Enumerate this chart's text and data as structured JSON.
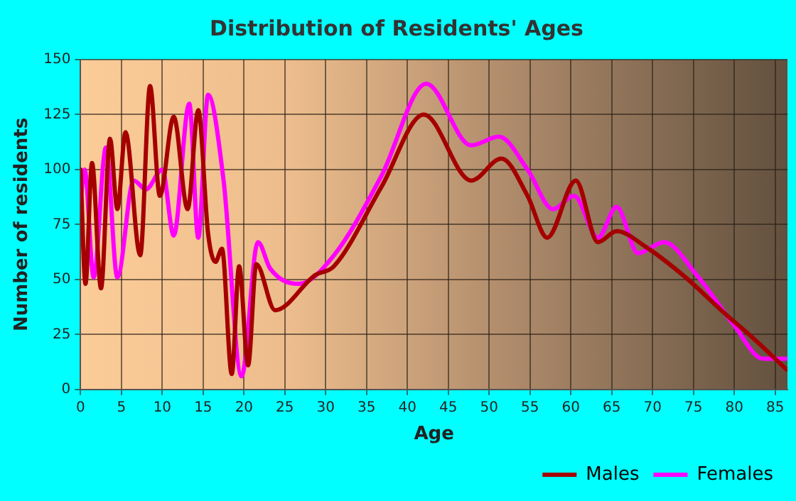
{
  "chart_data": {
    "type": "line",
    "title": "Distribution of Residents' Ages",
    "xlabel": "Age",
    "ylabel": "Number of residents",
    "xlim": [
      0,
      86.5
    ],
    "xticks": [
      0,
      5,
      10,
      15,
      20,
      25,
      30,
      35,
      40,
      45,
      50,
      55,
      60,
      65,
      70,
      75,
      80,
      85
    ],
    "ylim": [
      0,
      150
    ],
    "yticks": [
      0,
      25,
      50,
      75,
      100,
      125,
      150
    ],
    "grid": true,
    "legend": "bottom right",
    "marker": "none",
    "line_style": "solid",
    "series": [
      {
        "name": "Males",
        "color": "#a50000",
        "x": [
          0,
          0.6,
          1.4,
          2.5,
          3.6,
          4.5,
          5.5,
          7.3,
          8.5,
          9.7,
          11.4,
          13.1,
          14.4,
          15.6,
          16.5,
          17.3,
          18.5,
          19.4,
          20.5,
          21.5,
          23.8,
          28.7,
          31.0,
          36.8,
          42.0,
          47.8,
          51.5,
          54.7,
          57.1,
          60.6,
          63.3,
          65.6,
          69.1,
          73.7,
          79.0,
          82.4,
          86.4
        ],
        "values": [
          100,
          48,
          103,
          46,
          114,
          82,
          117,
          61,
          138,
          88,
          124,
          82,
          127,
          71,
          58,
          64,
          7,
          56,
          11,
          57,
          36,
          52,
          56,
          92,
          125,
          95,
          105,
          88,
          69,
          95,
          67,
          72,
          65,
          52,
          34,
          23,
          9
        ]
      },
      {
        "name": "Females",
        "color": "#ff00ff",
        "x": [
          0,
          0.5,
          1.6,
          3.1,
          4.5,
          6.5,
          8.0,
          10.0,
          11.4,
          13.3,
          14.4,
          15.6,
          17.5,
          19.7,
          21.7,
          23.2,
          26.7,
          31.0,
          36.8,
          42.3,
          47.8,
          51.2,
          54.7,
          57.8,
          60.4,
          63.3,
          65.6,
          68.2,
          71.4,
          75.4,
          80.0,
          83.5,
          86.4
        ],
        "values": [
          86,
          100,
          51,
          110,
          51,
          95,
          91,
          100,
          70,
          130,
          69,
          134,
          95,
          6,
          67,
          55,
          48,
          61,
          97,
          139,
          111,
          115,
          100,
          82,
          88,
          69,
          83,
          62,
          67,
          52,
          29,
          14,
          14
        ]
      }
    ]
  }
}
